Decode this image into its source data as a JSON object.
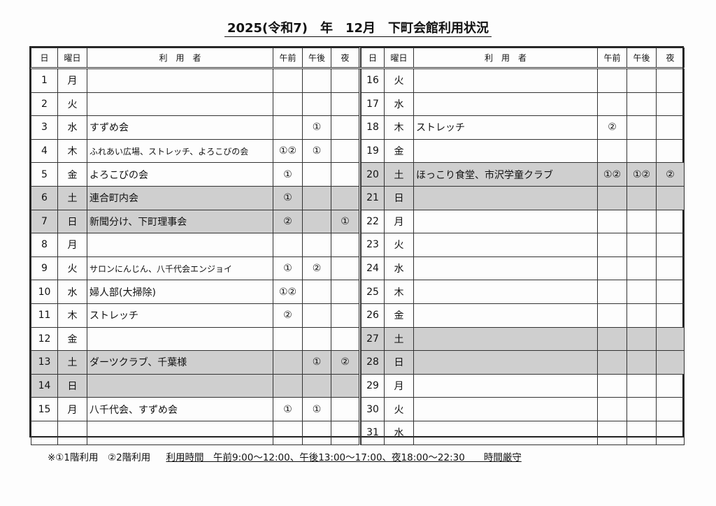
{
  "title": "2025(令和7)　年　12月　下町会館利用状況",
  "headers": {
    "day": "日",
    "weekday": "曜日",
    "user": "利　用　者",
    "morning": "午前",
    "afternoon": "午後",
    "night": "夜"
  },
  "left_rows": [
    {
      "day": "1",
      "weekday": "月",
      "user": "",
      "morning": "",
      "afternoon": "",
      "night": "",
      "shaded": false
    },
    {
      "day": "2",
      "weekday": "火",
      "user": "",
      "morning": "",
      "afternoon": "",
      "night": "",
      "shaded": false
    },
    {
      "day": "3",
      "weekday": "水",
      "user": "すずめ会",
      "morning": "",
      "afternoon": "①",
      "night": "",
      "shaded": false
    },
    {
      "day": "4",
      "weekday": "木",
      "user": "ふれあい広場、ストレッチ、よろこびの会",
      "morning": "①②",
      "afternoon": "①",
      "night": "",
      "shaded": false
    },
    {
      "day": "5",
      "weekday": "金",
      "user": "よろこびの会",
      "morning": "①",
      "afternoon": "",
      "night": "",
      "shaded": false
    },
    {
      "day": "6",
      "weekday": "土",
      "user": "連合町内会",
      "morning": "①",
      "afternoon": "",
      "night": "",
      "shaded": true
    },
    {
      "day": "7",
      "weekday": "日",
      "user": "新聞分け、下町理事会",
      "morning": "②",
      "afternoon": "",
      "night": "①",
      "shaded": true
    },
    {
      "day": "8",
      "weekday": "月",
      "user": "",
      "morning": "",
      "afternoon": "",
      "night": "",
      "shaded": false
    },
    {
      "day": "9",
      "weekday": "火",
      "user": "サロンにんじん、八千代会エンジョイ",
      "morning": "①",
      "afternoon": "②",
      "night": "",
      "shaded": false
    },
    {
      "day": "10",
      "weekday": "水",
      "user": "婦人部(大掃除)",
      "morning": "①②",
      "afternoon": "",
      "night": "",
      "shaded": false
    },
    {
      "day": "11",
      "weekday": "木",
      "user": "ストレッチ",
      "morning": "②",
      "afternoon": "",
      "night": "",
      "shaded": false
    },
    {
      "day": "12",
      "weekday": "金",
      "user": "",
      "morning": "",
      "afternoon": "",
      "night": "",
      "shaded": false
    },
    {
      "day": "13",
      "weekday": "土",
      "user": "ダーツクラブ、千葉様",
      "morning": "",
      "afternoon": "①",
      "night": "②",
      "shaded": true
    },
    {
      "day": "14",
      "weekday": "日",
      "user": "",
      "morning": "",
      "afternoon": "",
      "night": "",
      "shaded": true
    },
    {
      "day": "15",
      "weekday": "月",
      "user": "八千代会、すずめ会",
      "morning": "①",
      "afternoon": "①",
      "night": "",
      "shaded": false
    },
    {
      "day": "",
      "weekday": "",
      "user": "",
      "morning": "",
      "afternoon": "",
      "night": "",
      "shaded": false
    }
  ],
  "right_rows": [
    {
      "day": "16",
      "weekday": "火",
      "user": "",
      "morning": "",
      "afternoon": "",
      "night": "",
      "shaded": false
    },
    {
      "day": "17",
      "weekday": "水",
      "user": "",
      "morning": "",
      "afternoon": "",
      "night": "",
      "shaded": false
    },
    {
      "day": "18",
      "weekday": "木",
      "user": "ストレッチ",
      "morning": "②",
      "afternoon": "",
      "night": "",
      "shaded": false
    },
    {
      "day": "19",
      "weekday": "金",
      "user": "",
      "morning": "",
      "afternoon": "",
      "night": "",
      "shaded": false
    },
    {
      "day": "20",
      "weekday": "土",
      "user": "ほっこり食堂、市沢学童クラブ",
      "morning": "①②",
      "afternoon": "①②",
      "night": "②",
      "shaded": true
    },
    {
      "day": "21",
      "weekday": "日",
      "user": "",
      "morning": "",
      "afternoon": "",
      "night": "",
      "shaded": true
    },
    {
      "day": "22",
      "weekday": "月",
      "user": "",
      "morning": "",
      "afternoon": "",
      "night": "",
      "shaded": false
    },
    {
      "day": "23",
      "weekday": "火",
      "user": "",
      "morning": "",
      "afternoon": "",
      "night": "",
      "shaded": false
    },
    {
      "day": "24",
      "weekday": "水",
      "user": "",
      "morning": "",
      "afternoon": "",
      "night": "",
      "shaded": false
    },
    {
      "day": "25",
      "weekday": "木",
      "user": "",
      "morning": "",
      "afternoon": "",
      "night": "",
      "shaded": false
    },
    {
      "day": "26",
      "weekday": "金",
      "user": "",
      "morning": "",
      "afternoon": "",
      "night": "",
      "shaded": false
    },
    {
      "day": "27",
      "weekday": "土",
      "user": "",
      "morning": "",
      "afternoon": "",
      "night": "",
      "shaded": true
    },
    {
      "day": "28",
      "weekday": "日",
      "user": "",
      "morning": "",
      "afternoon": "",
      "night": "",
      "shaded": true
    },
    {
      "day": "29",
      "weekday": "月",
      "user": "",
      "morning": "",
      "afternoon": "",
      "night": "",
      "shaded": false
    },
    {
      "day": "30",
      "weekday": "火",
      "user": "",
      "morning": "",
      "afternoon": "",
      "night": "",
      "shaded": false
    },
    {
      "day": "31",
      "weekday": "水",
      "user": "",
      "morning": "",
      "afternoon": "",
      "night": "",
      "shaded": false
    }
  ],
  "footer": {
    "legend": "※①1階利用　②2階利用",
    "hours": "利用時間　午前9:00～12:00、午後13:00～17:00、夜18:00～22:30　　時間厳守"
  },
  "colors": {
    "shade": "#cfcfcf",
    "line": "#333333"
  }
}
